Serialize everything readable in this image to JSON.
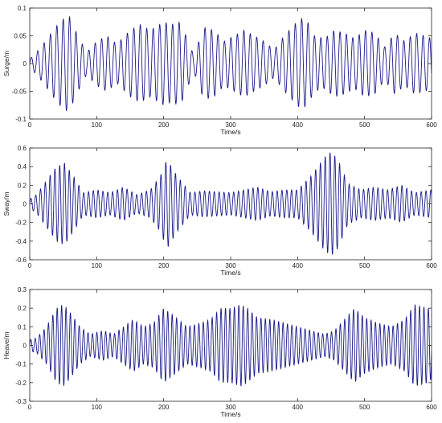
{
  "chart_data": [
    {
      "type": "line",
      "ylabel": "Surge/m",
      "xlabel": "Time/s",
      "xlim": [
        0,
        600
      ],
      "ylim": [
        -0.1,
        0.1
      ],
      "xticks": [
        0,
        100,
        200,
        300,
        400,
        500,
        600
      ],
      "xtick_labels": [
        "0",
        "100",
        "200",
        "300",
        "400",
        "500",
        "600"
      ],
      "yticks": [
        -0.1,
        -0.05,
        0,
        0.05,
        0.1
      ],
      "ytick_labels": [
        "-0.1",
        "-0.05",
        "0",
        "0.05",
        "0.1"
      ],
      "color": "#1a1a8c",
      "carrier_period": 9.6,
      "envelope": {
        "t": [
          0,
          10,
          20,
          35,
          45,
          58,
          70,
          85,
          100,
          115,
          130,
          150,
          165,
          180,
          200,
          210,
          225,
          245,
          260,
          275,
          290,
          305,
          320,
          335,
          350,
          365,
          380,
          395,
          405,
          415,
          425,
          440,
          455,
          470,
          485,
          500,
          515,
          530,
          545,
          560,
          575,
          590,
          600
        ],
        "a": [
          0.008,
          0.02,
          0.035,
          0.06,
          0.075,
          0.088,
          0.055,
          0.02,
          0.04,
          0.05,
          0.035,
          0.06,
          0.07,
          0.06,
          0.075,
          0.07,
          0.075,
          0.015,
          0.065,
          0.06,
          0.04,
          0.05,
          0.06,
          0.05,
          0.04,
          0.025,
          0.05,
          0.07,
          0.082,
          0.075,
          0.05,
          0.045,
          0.06,
          0.055,
          0.045,
          0.06,
          0.055,
          0.03,
          0.055,
          0.04,
          0.055,
          0.05,
          0.045
        ]
      }
    },
    {
      "type": "line",
      "ylabel": "Sway/m",
      "xlabel": "Time/s",
      "xlim": [
        0,
        600
      ],
      "ylim": [
        -0.6,
        0.6
      ],
      "xticks": [
        0,
        100,
        200,
        300,
        400,
        500,
        600
      ],
      "xtick_labels": [
        "0",
        "100",
        "200",
        "300",
        "400",
        "500",
        "600"
      ],
      "yticks": [
        -0.6,
        -0.4,
        -0.2,
        0,
        0.2,
        0.4,
        0.6
      ],
      "ytick_labels": [
        "-0.6",
        "-0.4",
        "-0.2",
        "0",
        "0.2",
        "0.4",
        "0.6"
      ],
      "color": "#1a1a8c",
      "carrier_period": 7.2,
      "envelope": {
        "t": [
          0,
          10,
          25,
          40,
          52,
          65,
          80,
          100,
          120,
          140,
          160,
          180,
          195,
          205,
          220,
          240,
          260,
          280,
          300,
          320,
          340,
          360,
          380,
          400,
          420,
          440,
          450,
          460,
          475,
          495,
          515,
          535,
          555,
          575,
          600
        ],
        "a": [
          0.05,
          0.1,
          0.25,
          0.4,
          0.44,
          0.3,
          0.12,
          0.15,
          0.12,
          0.18,
          0.1,
          0.15,
          0.3,
          0.48,
          0.3,
          0.12,
          0.14,
          0.13,
          0.12,
          0.15,
          0.18,
          0.13,
          0.15,
          0.15,
          0.3,
          0.5,
          0.56,
          0.48,
          0.22,
          0.15,
          0.18,
          0.15,
          0.2,
          0.12,
          0.15
        ]
      }
    },
    {
      "type": "line",
      "ylabel": "Heave/m",
      "xlabel": "Time/s",
      "xlim": [
        0,
        600
      ],
      "ylim": [
        -0.3,
        0.3
      ],
      "xticks": [
        0,
        100,
        200,
        300,
        400,
        500,
        600
      ],
      "xtick_labels": [
        "0",
        "100",
        "200",
        "300",
        "400",
        "500",
        "600"
      ],
      "yticks": [
        -0.3,
        -0.2,
        -0.1,
        0,
        0.1,
        0.2,
        0.3
      ],
      "ytick_labels": [
        "-0.3",
        "-0.2",
        "-0.1",
        "0",
        "0.1",
        "0.2",
        "0.3"
      ],
      "color": "#1a1a8c",
      "carrier_period": 6.6,
      "envelope": {
        "t": [
          0,
          10,
          25,
          40,
          50,
          60,
          75,
          90,
          110,
          125,
          140,
          155,
          170,
          185,
          200,
          215,
          235,
          255,
          270,
          285,
          300,
          315,
          325,
          340,
          360,
          380,
          400,
          420,
          440,
          455,
          470,
          485,
          500,
          520,
          540,
          560,
          575,
          585,
          595,
          600
        ],
        "a": [
          0.03,
          0.04,
          0.1,
          0.2,
          0.22,
          0.18,
          0.1,
          0.06,
          0.08,
          0.06,
          0.1,
          0.14,
          0.1,
          0.12,
          0.2,
          0.16,
          0.1,
          0.12,
          0.14,
          0.2,
          0.2,
          0.22,
          0.2,
          0.15,
          0.14,
          0.12,
          0.1,
          0.08,
          0.06,
          0.08,
          0.14,
          0.2,
          0.15,
          0.12,
          0.1,
          0.14,
          0.22,
          0.21,
          0.2,
          0.18
        ]
      }
    }
  ]
}
